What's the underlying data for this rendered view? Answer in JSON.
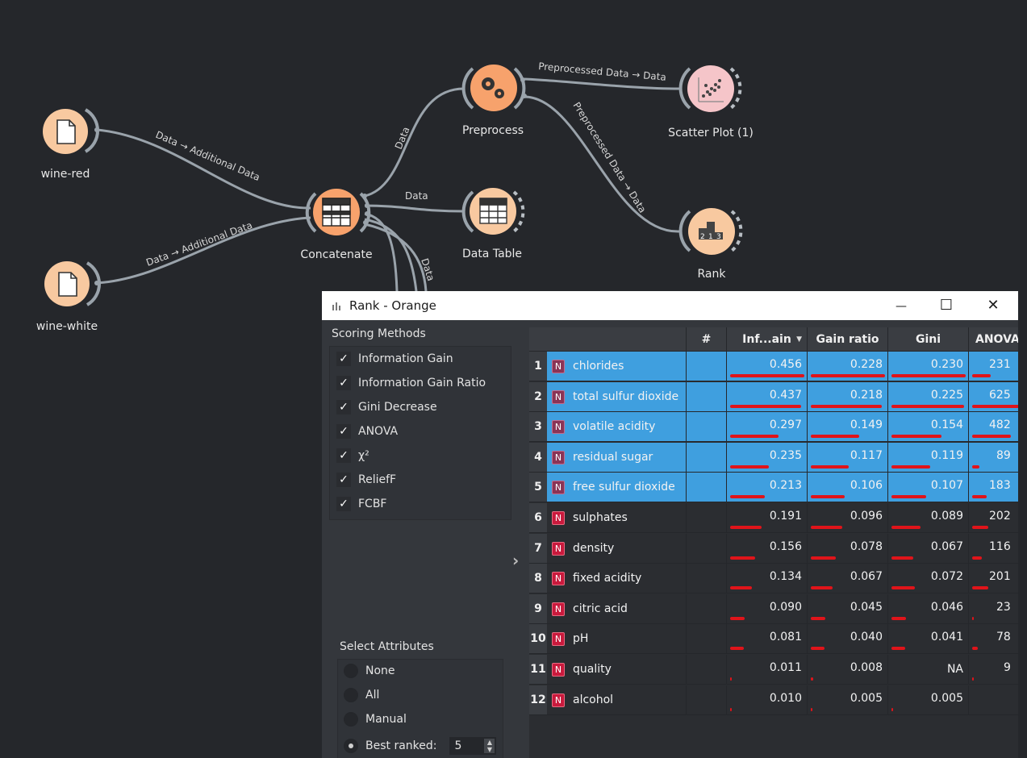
{
  "canvas": {
    "nodes": [
      {
        "id": "wine-red",
        "label": "wine-red",
        "icon": "file-icon"
      },
      {
        "id": "wine-white",
        "label": "wine-white",
        "icon": "file-icon"
      },
      {
        "id": "concatenate",
        "label": "Concatenate",
        "icon": "table-merge-icon"
      },
      {
        "id": "preprocess",
        "label": "Preprocess",
        "icon": "gears-icon"
      },
      {
        "id": "data-table",
        "label": "Data Table",
        "icon": "grid-icon"
      },
      {
        "id": "scatter-plot",
        "label": "Scatter Plot (1)",
        "icon": "scatter-icon"
      },
      {
        "id": "rank",
        "label": "Rank",
        "icon": "rank-podium-icon"
      }
    ],
    "link_labels": {
      "red_to_concat": "Data → Additional Data",
      "white_to_concat": "Data → Additional Data",
      "concat_to_preprocess": "Data",
      "concat_to_table": "Data",
      "concat_down": "Data",
      "preprocess_to_scatter": "Preprocessed Data → Data",
      "preprocess_to_rank": "Preprocessed Data → Data"
    }
  },
  "window": {
    "title": "Rank - Orange",
    "buttons": {
      "minimize": "—",
      "maximize": "☐",
      "close": "✕"
    }
  },
  "scoring": {
    "title": "Scoring Methods",
    "methods": [
      {
        "label": "Information Gain",
        "checked": true
      },
      {
        "label": "Information Gain Ratio",
        "checked": true
      },
      {
        "label": "Gini Decrease",
        "checked": true
      },
      {
        "label": "ANOVA",
        "checked": true
      },
      {
        "label": "χ²",
        "checked": true
      },
      {
        "label": "ReliefF",
        "checked": true
      },
      {
        "label": "FCBF",
        "checked": true
      }
    ]
  },
  "select_attributes": {
    "title": "Select Attributes",
    "options": [
      {
        "label": "None",
        "selected": false
      },
      {
        "label": "All",
        "selected": false
      },
      {
        "label": "Manual",
        "selected": false
      },
      {
        "label": "Best ranked:",
        "selected": true
      }
    ],
    "best_ranked_value": "5"
  },
  "table": {
    "headers": [
      "#",
      "Inf...ain",
      "Gain ratio",
      "Gini",
      "ANOVA"
    ],
    "sorted_column": "Inf...ain",
    "rows": [
      {
        "n": "1",
        "tag": "N",
        "name": "chlorides",
        "info": "0.456",
        "ratio": "0.228",
        "gini": "0.230",
        "anova": "231",
        "fi": 1.0,
        "fr": 1.0,
        "fg": 1.0,
        "fa": 0.37,
        "selected": true
      },
      {
        "n": "2",
        "tag": "N",
        "name": "total sulfur dioxide",
        "info": "0.437",
        "ratio": "0.218",
        "gini": "0.225",
        "anova": "625",
        "fi": 0.96,
        "fr": 0.96,
        "fg": 0.98,
        "fa": 1.0,
        "selected": true
      },
      {
        "n": "3",
        "tag": "N",
        "name": "volatile acidity",
        "info": "0.297",
        "ratio": "0.149",
        "gini": "0.154",
        "anova": "482",
        "fi": 0.65,
        "fr": 0.65,
        "fg": 0.67,
        "fa": 0.77,
        "selected": true
      },
      {
        "n": "4",
        "tag": "N",
        "name": "residual sugar",
        "info": "0.235",
        "ratio": "0.117",
        "gini": "0.119",
        "anova": "89",
        "fi": 0.52,
        "fr": 0.51,
        "fg": 0.52,
        "fa": 0.14,
        "selected": true
      },
      {
        "n": "5",
        "tag": "N",
        "name": "free sulfur dioxide",
        "info": "0.213",
        "ratio": "0.106",
        "gini": "0.107",
        "anova": "183",
        "fi": 0.47,
        "fr": 0.46,
        "fg": 0.47,
        "fa": 0.29,
        "selected": true
      },
      {
        "n": "6",
        "tag": "N",
        "name": "sulphates",
        "info": "0.191",
        "ratio": "0.096",
        "gini": "0.089",
        "anova": "202",
        "fi": 0.42,
        "fr": 0.42,
        "fg": 0.39,
        "fa": 0.32,
        "selected": false
      },
      {
        "n": "7",
        "tag": "N",
        "name": "density",
        "info": "0.156",
        "ratio": "0.078",
        "gini": "0.067",
        "anova": "116",
        "fi": 0.34,
        "fr": 0.34,
        "fg": 0.29,
        "fa": 0.19,
        "selected": false
      },
      {
        "n": "8",
        "tag": "N",
        "name": "fixed acidity",
        "info": "0.134",
        "ratio": "0.067",
        "gini": "0.072",
        "anova": "201",
        "fi": 0.29,
        "fr": 0.29,
        "fg": 0.31,
        "fa": 0.32,
        "selected": false
      },
      {
        "n": "9",
        "tag": "N",
        "name": "citric acid",
        "info": "0.090",
        "ratio": "0.045",
        "gini": "0.046",
        "anova": "23",
        "fi": 0.2,
        "fr": 0.2,
        "fg": 0.2,
        "fa": 0.04,
        "selected": false
      },
      {
        "n": "10",
        "tag": "N",
        "name": "pH",
        "info": "0.081",
        "ratio": "0.040",
        "gini": "0.041",
        "anova": "78",
        "fi": 0.18,
        "fr": 0.18,
        "fg": 0.18,
        "fa": 0.12,
        "selected": false
      },
      {
        "n": "11",
        "tag": "N",
        "name": "quality",
        "info": "0.011",
        "ratio": "0.008",
        "gini": "NA",
        "anova": "9",
        "fi": 0.02,
        "fr": 0.03,
        "fg": 0.0,
        "fa": 0.01,
        "selected": false
      },
      {
        "n": "12",
        "tag": "N",
        "name": "alcohol",
        "info": "0.010",
        "ratio": "0.005",
        "gini": "0.005",
        "anova": "",
        "fi": 0.02,
        "fr": 0.02,
        "fg": 0.02,
        "fa": 0.0,
        "selected": false
      }
    ]
  },
  "colors": {
    "canvas_bg": "#25272b",
    "node_fill": "#f8c9a0",
    "node_fill_active": "#f7a26c",
    "node_fill_pink": "#f5c5c9",
    "selection_blue": "#3f9fdf",
    "score_bar": "#e0141a",
    "tag_red": "#c91a3d"
  }
}
